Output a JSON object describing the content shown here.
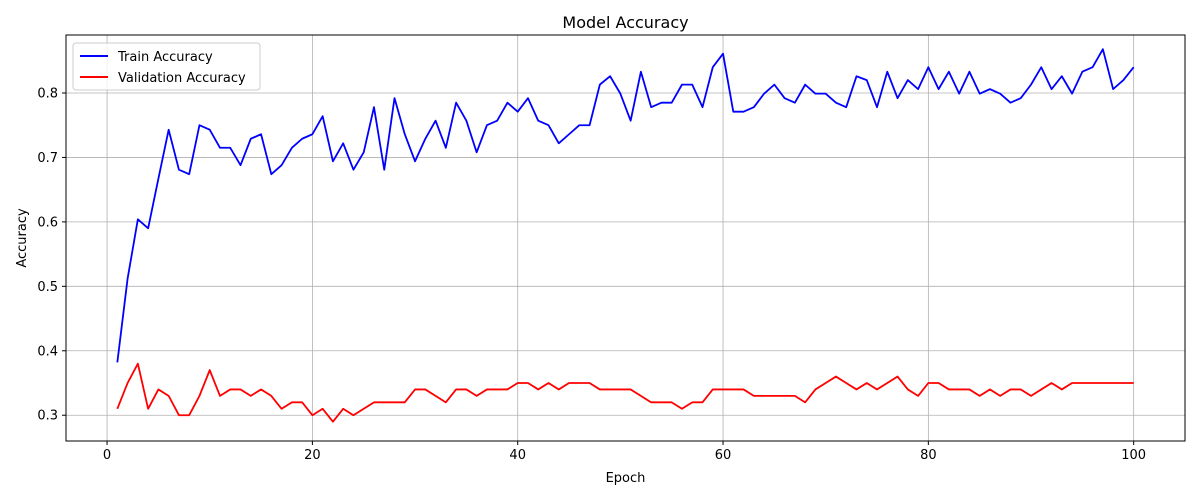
{
  "chart_data": {
    "type": "line",
    "title": "Model Accuracy",
    "xlabel": "Epoch",
    "ylabel": "Accuracy",
    "xlim": [
      -4,
      105
    ],
    "ylim": [
      0.26,
      0.89
    ],
    "xticks": [
      0,
      20,
      40,
      60,
      80,
      100
    ],
    "yticks": [
      0.3,
      0.4,
      0.5,
      0.6,
      0.7,
      0.8
    ],
    "xtick_labels": [
      "0",
      "20",
      "40",
      "60",
      "80",
      "100"
    ],
    "ytick_labels": [
      "0.3",
      "0.4",
      "0.5",
      "0.6",
      "0.7",
      "0.8"
    ],
    "grid": true,
    "legend_position": "top-left",
    "x": [
      1,
      2,
      3,
      4,
      5,
      6,
      7,
      8,
      9,
      10,
      11,
      12,
      13,
      14,
      15,
      16,
      17,
      18,
      19,
      20,
      21,
      22,
      23,
      24,
      25,
      26,
      27,
      28,
      29,
      30,
      31,
      32,
      33,
      34,
      35,
      36,
      37,
      38,
      39,
      40,
      41,
      42,
      43,
      44,
      45,
      46,
      47,
      48,
      49,
      50,
      51,
      52,
      53,
      54,
      55,
      56,
      57,
      58,
      59,
      60,
      61,
      62,
      63,
      64,
      65,
      66,
      67,
      68,
      69,
      70,
      71,
      72,
      73,
      74,
      75,
      76,
      77,
      78,
      79,
      80,
      81,
      82,
      83,
      84,
      85,
      86,
      87,
      88,
      89,
      90,
      91,
      92,
      93,
      94,
      95,
      96,
      97,
      98,
      99,
      100
    ],
    "series": [
      {
        "name": "Train Accuracy",
        "color": "#0000ff",
        "values": [
          0.382,
          0.512,
          0.604,
          0.59,
          0.667,
          0.743,
          0.681,
          0.674,
          0.75,
          0.743,
          0.715,
          0.715,
          0.688,
          0.729,
          0.736,
          0.674,
          0.688,
          0.715,
          0.729,
          0.736,
          0.764,
          0.694,
          0.722,
          0.681,
          0.708,
          0.778,
          0.681,
          0.792,
          0.736,
          0.694,
          0.729,
          0.757,
          0.715,
          0.785,
          0.757,
          0.708,
          0.75,
          0.757,
          0.785,
          0.771,
          0.792,
          0.757,
          0.75,
          0.722,
          0.736,
          0.75,
          0.75,
          0.813,
          0.826,
          0.799,
          0.757,
          0.833,
          0.778,
          0.785,
          0.785,
          0.813,
          0.813,
          0.778,
          0.84,
          0.861,
          0.771,
          0.771,
          0.778,
          0.799,
          0.813,
          0.792,
          0.785,
          0.813,
          0.799,
          0.799,
          0.785,
          0.778,
          0.826,
          0.82,
          0.778,
          0.833,
          0.792,
          0.82,
          0.806,
          0.84,
          0.806,
          0.833,
          0.799,
          0.833,
          0.799,
          0.806,
          0.799,
          0.785,
          0.792,
          0.813,
          0.84,
          0.806,
          0.826,
          0.799,
          0.833,
          0.84,
          0.868,
          0.806,
          0.82,
          0.84
        ]
      },
      {
        "name": "Validation Accuracy",
        "color": "#ff0000",
        "values": [
          0.31,
          0.35,
          0.38,
          0.31,
          0.34,
          0.33,
          0.3,
          0.3,
          0.33,
          0.37,
          0.33,
          0.34,
          0.34,
          0.33,
          0.34,
          0.33,
          0.31,
          0.32,
          0.32,
          0.3,
          0.31,
          0.29,
          0.31,
          0.3,
          0.31,
          0.32,
          0.32,
          0.32,
          0.32,
          0.34,
          0.34,
          0.33,
          0.32,
          0.34,
          0.34,
          0.33,
          0.34,
          0.34,
          0.34,
          0.35,
          0.35,
          0.34,
          0.35,
          0.34,
          0.35,
          0.35,
          0.35,
          0.34,
          0.34,
          0.34,
          0.34,
          0.33,
          0.32,
          0.32,
          0.32,
          0.31,
          0.32,
          0.32,
          0.34,
          0.34,
          0.34,
          0.34,
          0.33,
          0.33,
          0.33,
          0.33,
          0.33,
          0.32,
          0.34,
          0.35,
          0.36,
          0.35,
          0.34,
          0.35,
          0.34,
          0.35,
          0.36,
          0.34,
          0.33,
          0.35,
          0.35,
          0.34,
          0.34,
          0.34,
          0.33,
          0.34,
          0.33,
          0.34,
          0.34,
          0.33,
          0.34,
          0.35,
          0.34,
          0.35,
          0.35,
          0.35,
          0.35,
          0.35,
          0.35,
          0.35
        ]
      }
    ]
  }
}
